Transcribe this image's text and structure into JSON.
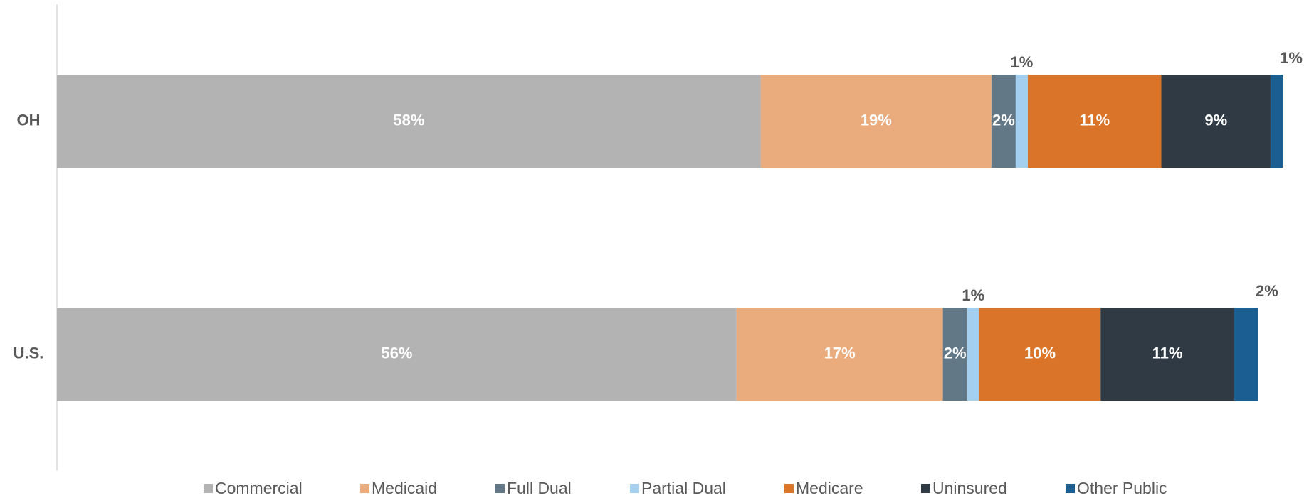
{
  "chart_data": {
    "type": "stacked-bar-horizontal",
    "categories": [
      "OH",
      "U.S."
    ],
    "xlim": [
      0,
      101
    ],
    "series": [
      {
        "name": "Commercial",
        "color": "#b3b3b3",
        "values": [
          58,
          56
        ],
        "value_labels": [
          "58%",
          "56%"
        ],
        "label_position": "inside"
      },
      {
        "name": "Medicaid",
        "color": "#eaab7d",
        "values": [
          19,
          17
        ],
        "value_labels": [
          "19%",
          "17%"
        ],
        "label_position": "inside"
      },
      {
        "name": "Full Dual",
        "color": "#627887",
        "values": [
          2,
          2
        ],
        "value_labels": [
          "2%",
          "2%"
        ],
        "label_position": "inside"
      },
      {
        "name": "Partial Dual",
        "color": "#a4cfee",
        "values": [
          1,
          1
        ],
        "value_labels": [
          "1%",
          "1%"
        ],
        "label_position": "above"
      },
      {
        "name": "Medicare",
        "color": "#da7428",
        "values": [
          11,
          10
        ],
        "value_labels": [
          "11%",
          "10%"
        ],
        "label_position": "inside"
      },
      {
        "name": "Uninsured",
        "color": "#2f3a44",
        "values": [
          9,
          11
        ],
        "value_labels": [
          "9%",
          "11%"
        ],
        "label_position": "inside"
      },
      {
        "name": "Other Public",
        "color": "#1b5e91",
        "values": [
          1,
          2
        ],
        "value_labels": [
          "1%",
          "2%"
        ],
        "label_position": "above"
      }
    ]
  }
}
